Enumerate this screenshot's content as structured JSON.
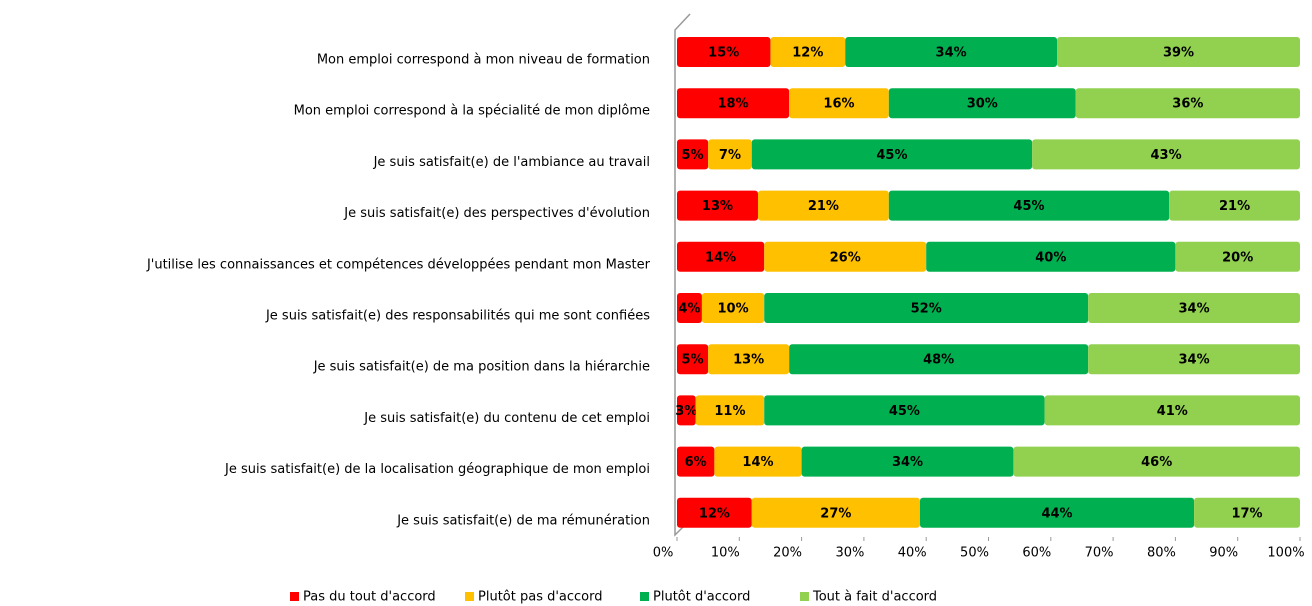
{
  "chart_data": {
    "type": "stacked-barh",
    "categories": [
      "Mon emploi correspond à mon niveau de formation",
      "Mon emploi correspond à la spécialité de mon diplôme",
      "Je suis satisfait(e) de l'ambiance au travail",
      "Je suis satisfait(e) des perspectives d'évolution",
      "J'utilise les connaissances et compétences développées pendant mon Master",
      "Je suis satisfait(e) des responsabilités qui me sont confiées",
      "Je suis satisfait(e) de ma position dans la hiérarchie",
      "Je suis satisfait(e) du contenu de cet emploi",
      "Je suis satisfait(e) de la localisation géographique de mon emploi",
      "Je suis satisfait(e) de ma rémunération"
    ],
    "series": [
      {
        "name": "Pas du tout d'accord",
        "color": "#ff0000",
        "values": [
          15,
          18,
          5,
          13,
          14,
          4,
          5,
          3,
          6,
          12
        ],
        "value_labels": [
          "15%",
          "18%",
          "5%",
          "13%",
          "14%",
          "4%",
          "5%",
          "3%",
          "6%",
          "12%"
        ]
      },
      {
        "name": "Plutôt pas d'accord",
        "color": "#ffc000",
        "values": [
          12,
          16,
          7,
          21,
          26,
          10,
          13,
          11,
          14,
          27
        ],
        "value_labels": [
          "12%",
          "16%",
          "7%",
          "21%",
          "26%",
          "10%",
          "13%",
          "11%",
          "14%",
          "27%"
        ]
      },
      {
        "name": "Plutôt d'accord",
        "color": "#00b050",
        "values": [
          34,
          30,
          45,
          45,
          40,
          52,
          48,
          45,
          34,
          44
        ],
        "value_labels": [
          "34%",
          "30%",
          "45%",
          "45%",
          "40%",
          "52%",
          "48%",
          "45%",
          "34%",
          "44%"
        ]
      },
      {
        "name": "Tout à fait d'accord",
        "color": "#92d050",
        "values": [
          39,
          36,
          43,
          21,
          20,
          34,
          34,
          41,
          46,
          17
        ],
        "value_labels": [
          "39%",
          "36%",
          "43%",
          "21%",
          "20%",
          "34%",
          "34%",
          "41%",
          "46%",
          "17%"
        ]
      }
    ],
    "xlim": [
      0,
      100
    ],
    "xticks": [
      {
        "value": 0,
        "label": "0%"
      },
      {
        "value": 10,
        "label": "10%"
      },
      {
        "value": 20,
        "label": "20%"
      },
      {
        "value": 30,
        "label": "30%"
      },
      {
        "value": 40,
        "label": "40%"
      },
      {
        "value": 50,
        "label": "50%"
      },
      {
        "value": 60,
        "label": "60%"
      },
      {
        "value": 70,
        "label": "70%"
      },
      {
        "value": 80,
        "label": "80%"
      },
      {
        "value": 90,
        "label": "90%"
      },
      {
        "value": 100,
        "label": "100%"
      }
    ],
    "legend": "bottom"
  }
}
